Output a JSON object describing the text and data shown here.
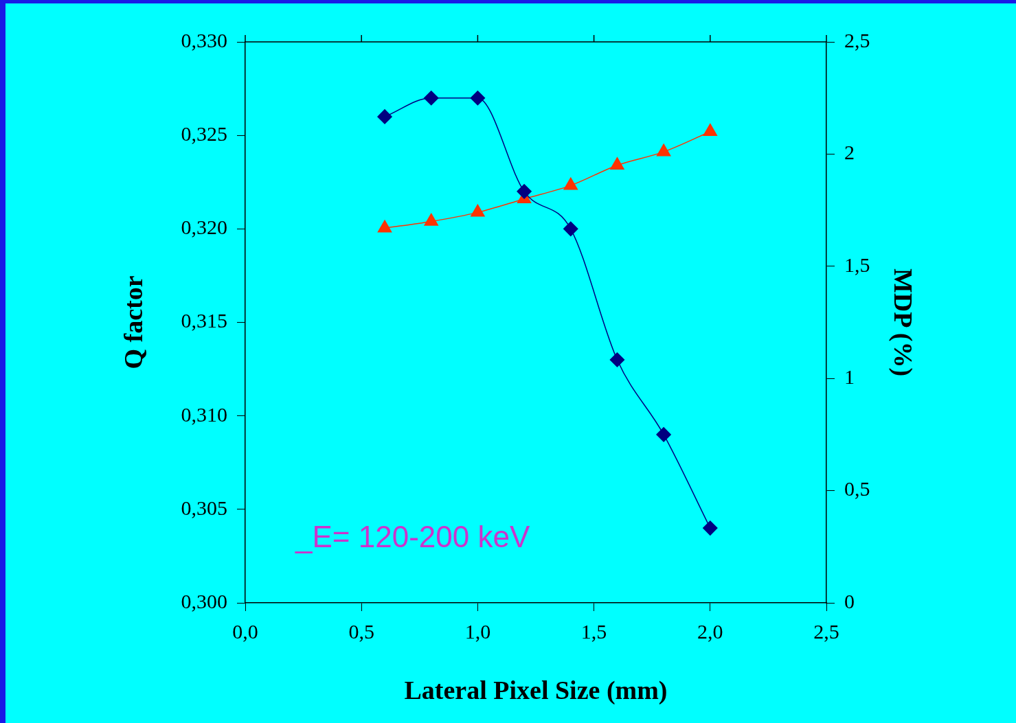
{
  "chart_data": {
    "type": "line",
    "xlabel": "Lateral Pixel Size (mm)",
    "ylabel": "Q factor",
    "y2label": "MDP (%)",
    "x": [
      0.6,
      0.8,
      1.0,
      1.2,
      1.4,
      1.6,
      1.8,
      2.0
    ],
    "series": [
      {
        "color": "#000080",
        "marker": "diamond",
        "values": [
          0.326,
          0.327,
          0.327,
          0.322,
          0.32,
          0.313,
          0.309,
          0.304
        ]
      },
      {
        "color": "#ff3300",
        "marker": "triangle",
        "axis": "y2",
        "values": [
          1.67,
          1.7,
          1.74,
          1.8,
          1.86,
          1.95,
          2.01,
          2.1
        ]
      }
    ],
    "xlim": [
      0,
      2.5
    ],
    "xticks": [
      {
        "value": 0,
        "label": "0,0"
      },
      {
        "value": 0.5,
        "label": "0,5"
      },
      {
        "value": 1,
        "label": "1,0"
      },
      {
        "value": 1.5,
        "label": "1,5"
      },
      {
        "value": 2,
        "label": "2,0"
      },
      {
        "value": 2.5,
        "label": "2,5"
      }
    ],
    "ylim": [
      0.3,
      0.33
    ],
    "yticks": [
      {
        "value": 0.3,
        "label": "0,300"
      },
      {
        "value": 0.305,
        "label": "0,305"
      },
      {
        "value": 0.31,
        "label": "0,310"
      },
      {
        "value": 0.315,
        "label": "0,315"
      },
      {
        "value": 0.32,
        "label": "0,320"
      },
      {
        "value": 0.325,
        "label": "0,325"
      },
      {
        "value": 0.33,
        "label": "0,330"
      }
    ],
    "y2lim": [
      0,
      2.5
    ],
    "y2ticks": [
      0,
      {
        "value": 0.5,
        "label": "0,5"
      },
      1,
      {
        "value": 1.5,
        "label": "1,5"
      },
      2,
      {
        "value": 2.5,
        "label": "2,5"
      }
    ],
    "annotations": [
      "_E= 120-200 keV"
    ],
    "grid": false,
    "legend": false
  }
}
